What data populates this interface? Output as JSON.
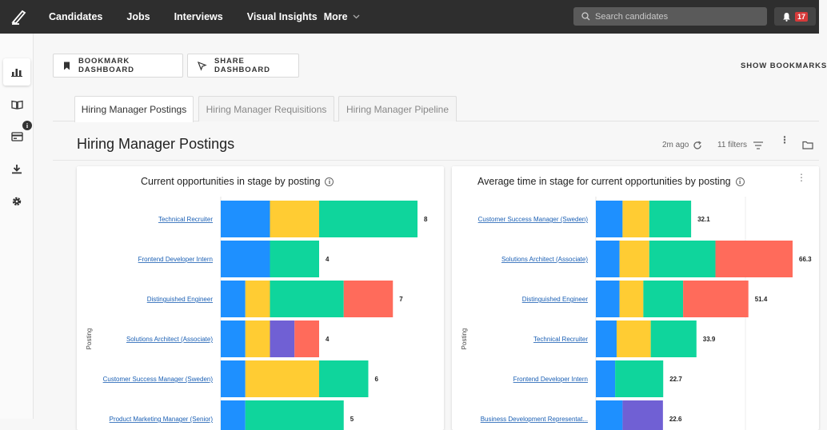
{
  "nav": {
    "items": [
      {
        "label": "Candidates"
      },
      {
        "label": "Jobs"
      },
      {
        "label": "Interviews"
      },
      {
        "label": "Visual Insights"
      }
    ],
    "more_label": "More",
    "search_placeholder": "Search candidates",
    "notification_count": "17"
  },
  "sidebar": {
    "icons": [
      "bar-chart-icon",
      "book-icon",
      "card-icon",
      "download-icon",
      "gear-icon"
    ]
  },
  "toolbar": {
    "bookmark_label": "BOOKMARK DASHBOARD",
    "share_label": "SHARE DASHBOARD",
    "show_bookmarks_label": "SHOW BOOKMARKS"
  },
  "tabs": [
    {
      "label": "Hiring Manager Postings",
      "active": true
    },
    {
      "label": "Hiring Manager Requisitions",
      "active": false
    },
    {
      "label": "Hiring Manager Pipeline",
      "active": false
    }
  ],
  "header": {
    "title": "Hiring Manager Postings",
    "updated": "2m ago",
    "filters": "11 filters"
  },
  "colors": {
    "blue": "#1e90ff",
    "yellow": "#ffcc33",
    "green": "#0fd59c",
    "purple": "#7060d4",
    "red": "#ff6b5b"
  },
  "chart_data": [
    {
      "type": "bar",
      "orientation": "horizontal",
      "stacked": true,
      "title": "Current opportunities in stage by posting",
      "ylabel": "Posting",
      "xlim": [
        0,
        8
      ],
      "categories": [
        "Technical Recruiter",
        "Frontend Developer Intern",
        "Distinguished Engineer",
        "Solutions Architect (Associate)",
        "Customer Success Manager (Sweden)",
        "Product Marketing Manager (Senior)"
      ],
      "totals": [
        8,
        4,
        7,
        4,
        6,
        5
      ],
      "segments": [
        [
          2,
          2,
          4,
          0,
          0
        ],
        [
          2,
          0,
          2,
          0,
          0
        ],
        [
          1,
          1,
          3,
          0,
          2
        ],
        [
          1,
          1,
          0,
          1,
          1
        ],
        [
          1,
          3,
          2,
          0,
          0
        ],
        [
          1,
          0,
          4,
          0,
          0
        ]
      ]
    },
    {
      "type": "bar",
      "orientation": "horizontal",
      "stacked": true,
      "title": "Average time in stage for current opportunities by posting",
      "ylabel": "Posting",
      "xlim": [
        0,
        66.3
      ],
      "categories": [
        "Customer Success Manager (Sweden)",
        "Solutions Architect (Associate)",
        "Distinguished Engineer",
        "Technical Recruiter",
        "Frontend Developer Intern",
        "Business Development Representat..."
      ],
      "totals": [
        32.1,
        66.3,
        51.4,
        33.9,
        22.7,
        22.6
      ],
      "segments": [
        [
          9,
          9,
          14.1,
          0,
          0
        ],
        [
          8,
          10,
          22.3,
          0,
          26
        ],
        [
          8,
          8,
          13.4,
          0,
          22
        ],
        [
          7,
          11.5,
          15.4,
          0,
          0
        ],
        [
          6.5,
          0,
          16.2,
          0,
          0
        ],
        [
          9,
          0,
          0,
          13.6,
          0
        ]
      ]
    }
  ]
}
